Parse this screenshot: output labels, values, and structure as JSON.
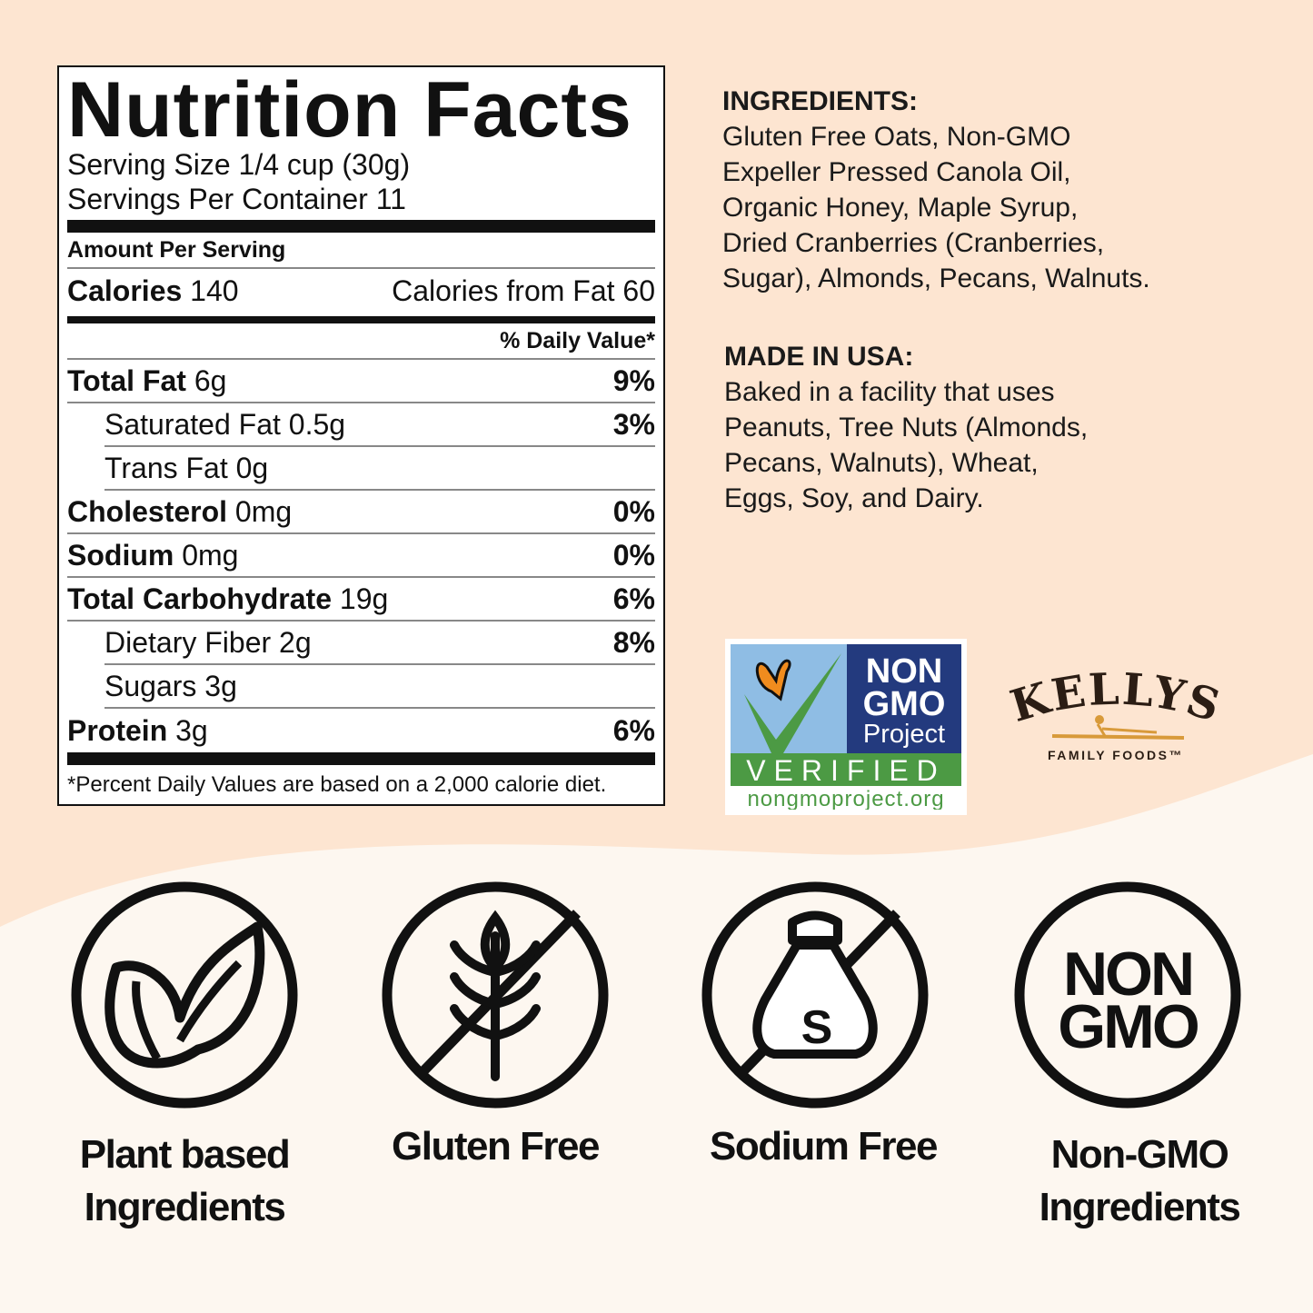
{
  "nutrition": {
    "title": "Nutrition Facts",
    "serving_size": "Serving Size 1/4 cup (30g)",
    "servings_per_container": "Servings Per Container 11",
    "amount_per_serving": "Amount Per Serving",
    "calories_label": "Calories",
    "calories_value": "140",
    "calories_from_fat": "Calories from Fat 60",
    "daily_value_header": "% Daily Value*",
    "rows": [
      {
        "label": "Total Fat",
        "amount": "6g",
        "dv": "9%"
      },
      {
        "label": "Saturated Fat",
        "amount": "0.5g",
        "dv": "3%"
      },
      {
        "label": "Trans Fat",
        "amount": "0g",
        "dv": ""
      },
      {
        "label": "Cholesterol",
        "amount": "0mg",
        "dv": "0%"
      },
      {
        "label": "Sodium",
        "amount": "0mg",
        "dv": "0%"
      },
      {
        "label": "Total Carbohydrate",
        "amount": "19g",
        "dv": "6%"
      },
      {
        "label": "Dietary Fiber",
        "amount": "2g",
        "dv": "8%"
      },
      {
        "label": "Sugars",
        "amount": "3g",
        "dv": ""
      },
      {
        "label": "Protein",
        "amount": "3g",
        "dv": "6%"
      }
    ],
    "footnote": "*Percent Daily Values are based on a 2,000 calorie diet."
  },
  "ingredients": {
    "heading": "INGREDIENTS:",
    "lines": [
      "Gluten Free Oats, Non-GMO",
      "Expeller Pressed Canola Oil,",
      "Organic Honey, Maple Syrup,",
      "Dried Cranberries (Cranberries,",
      "Sugar), Almonds, Pecans, Walnuts."
    ]
  },
  "made_in": {
    "heading": "MADE IN USA:",
    "lines": [
      "Baked in a facility that uses",
      "Peanuts, Tree Nuts (Almonds,",
      "Pecans, Walnuts), Wheat,",
      "Eggs, Soy, and Dairy."
    ]
  },
  "non_gmo_badge": {
    "line1": "NON",
    "line2": "GMO",
    "line3": "Project",
    "verified": "VERIFIED",
    "url": "nongmoproject.org"
  },
  "brand": {
    "name": "KELLYS",
    "tagline": "FAMILY FOODS™"
  },
  "features": [
    {
      "icon": "leaf-icon",
      "label1": "Plant based",
      "label2": "Ingredients"
    },
    {
      "icon": "no-wheat-icon",
      "label1": "Gluten Free",
      "label2": ""
    },
    {
      "icon": "no-salt-icon",
      "label1": "Sodium Free",
      "label2": ""
    },
    {
      "icon": "non-gmo-icon",
      "icon_text1": "NON",
      "icon_text2": "GMO",
      "label1": "Non-GMO",
      "label2": "Ingredients"
    }
  ],
  "colors": {
    "peach": "#fde5d1",
    "cream": "#fdf7f0",
    "badge_blue": "#233a7e",
    "badge_green": "#4c9a44",
    "badge_sky": "#8fbde4",
    "butterfly": "#f08c1e",
    "brand_brown": "#2b1d14",
    "brand_gold": "#d89a3a"
  }
}
